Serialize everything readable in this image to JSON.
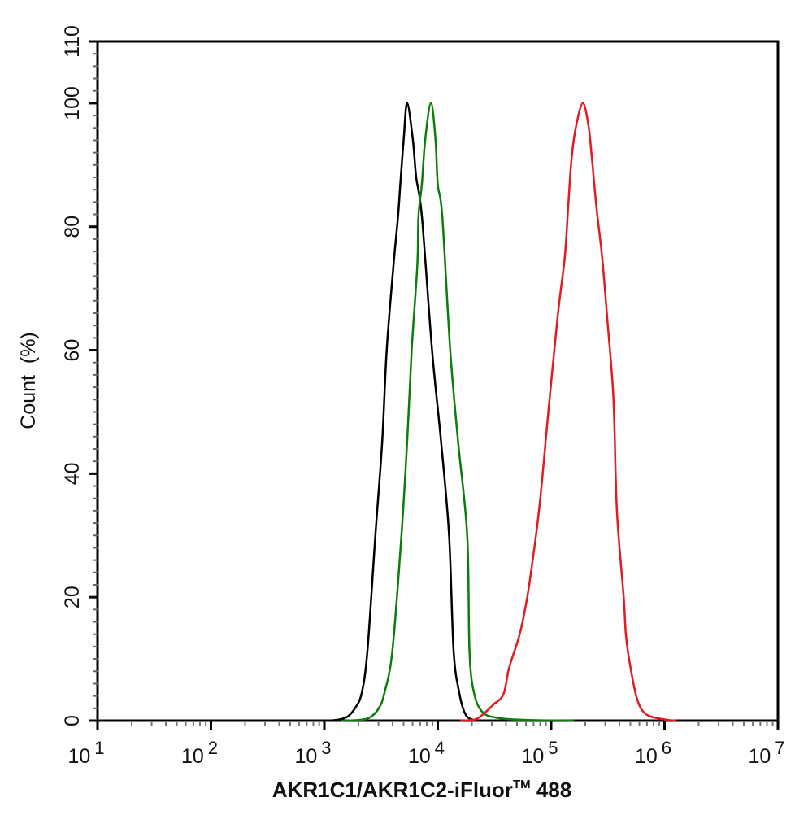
{
  "chart_data": {
    "type": "line",
    "title": "",
    "xlabel": "AKR1C1/AKR1C2-iFluor™ 488",
    "xlabel_main": "AKR1C1/AKR1C2-iFluor",
    "xlabel_sup": "TM",
    "xlabel_tail": " 488",
    "ylabel": "Count  (%)",
    "xscale": "log",
    "xlim_log10": [
      1,
      7
    ],
    "ylim": [
      0,
      110
    ],
    "x_tick_labels": [
      {
        "base": "10",
        "exp": "1"
      },
      {
        "base": "10",
        "exp": "2"
      },
      {
        "base": "10",
        "exp": "3"
      },
      {
        "base": "10",
        "exp": "4"
      },
      {
        "base": "10",
        "exp": "5"
      },
      {
        "base": "10",
        "exp": "6"
      },
      {
        "base": "10",
        "exp": "7"
      }
    ],
    "y_ticks": [
      0,
      20,
      40,
      60,
      80,
      100,
      110
    ],
    "y_minor_step": 2,
    "grid": false,
    "legend": null,
    "series": [
      {
        "name": "black",
        "color": "#000000",
        "points_log10x_count": [
          [
            2.97,
            0.0
          ],
          [
            3.1,
            0.1
          ],
          [
            3.2,
            0.6
          ],
          [
            3.27,
            2.0
          ],
          [
            3.33,
            4.5
          ],
          [
            3.38,
            11.3
          ],
          [
            3.45,
            30.0
          ],
          [
            3.51,
            45.1
          ],
          [
            3.55,
            60.0
          ],
          [
            3.61,
            73.8
          ],
          [
            3.65,
            81.7
          ],
          [
            3.67,
            86.9
          ],
          [
            3.7,
            94.2
          ],
          [
            3.73,
            100.0
          ],
          [
            3.78,
            94.2
          ],
          [
            3.81,
            88.0
          ],
          [
            3.86,
            81.7
          ],
          [
            3.95,
            60.0
          ],
          [
            4.03,
            45.1
          ],
          [
            4.1,
            30.0
          ],
          [
            4.14,
            11.3
          ],
          [
            4.19,
            4.5
          ],
          [
            4.24,
            1.2
          ],
          [
            4.3,
            0.2
          ],
          [
            4.4,
            0.0
          ]
        ]
      },
      {
        "name": "green",
        "color": "#0a7d0a",
        "points_log10x_count": [
          [
            3.15,
            0.0
          ],
          [
            3.3,
            0.1
          ],
          [
            3.4,
            0.5
          ],
          [
            3.48,
            2.0
          ],
          [
            3.53,
            4.5
          ],
          [
            3.6,
            11.3
          ],
          [
            3.68,
            30.0
          ],
          [
            3.73,
            45.1
          ],
          [
            3.77,
            60.0
          ],
          [
            3.82,
            73.8
          ],
          [
            3.83,
            81.7
          ],
          [
            3.86,
            86.9
          ],
          [
            3.89,
            94.2
          ],
          [
            3.94,
            100.0
          ],
          [
            3.98,
            94.2
          ],
          [
            4.0,
            86.9
          ],
          [
            4.04,
            81.7
          ],
          [
            4.11,
            60.0
          ],
          [
            4.18,
            45.1
          ],
          [
            4.26,
            30.0
          ],
          [
            4.28,
            11.3
          ],
          [
            4.32,
            4.5
          ],
          [
            4.4,
            1.3
          ],
          [
            4.55,
            0.4
          ],
          [
            4.8,
            0.1
          ],
          [
            5.2,
            0.0
          ]
        ]
      },
      {
        "name": "red",
        "color": "#e8191e",
        "points_log10x_count": [
          [
            4.2,
            0.0
          ],
          [
            4.33,
            0.2
          ],
          [
            4.41,
            1.2
          ],
          [
            4.49,
            2.6
          ],
          [
            4.58,
            4.3
          ],
          [
            4.63,
            8.6
          ],
          [
            4.72,
            13.8
          ],
          [
            4.78,
            19.0
          ],
          [
            4.83,
            25.0
          ],
          [
            4.9,
            35.2
          ],
          [
            4.98,
            50.9
          ],
          [
            5.06,
            65.9
          ],
          [
            5.12,
            75.0
          ],
          [
            5.15,
            83.1
          ],
          [
            5.18,
            91.0
          ],
          [
            5.22,
            96.3
          ],
          [
            5.28,
            100.0
          ],
          [
            5.33,
            96.3
          ],
          [
            5.36,
            91.0
          ],
          [
            5.4,
            83.1
          ],
          [
            5.45,
            75.0
          ],
          [
            5.5,
            64.0
          ],
          [
            5.55,
            52.0
          ],
          [
            5.58,
            34.0
          ],
          [
            5.64,
            20.0
          ],
          [
            5.66,
            13.8
          ],
          [
            5.7,
            8.6
          ],
          [
            5.76,
            3.4
          ],
          [
            5.84,
            1.0
          ],
          [
            6.0,
            0.2
          ],
          [
            6.1,
            0.0
          ]
        ]
      }
    ],
    "peaks": [
      {
        "series": "black",
        "x_approx": 5300,
        "count": 100
      },
      {
        "series": "green",
        "x_approx": 8600,
        "count": 100
      },
      {
        "series": "red",
        "x_approx": 190000,
        "count": 100
      }
    ]
  }
}
